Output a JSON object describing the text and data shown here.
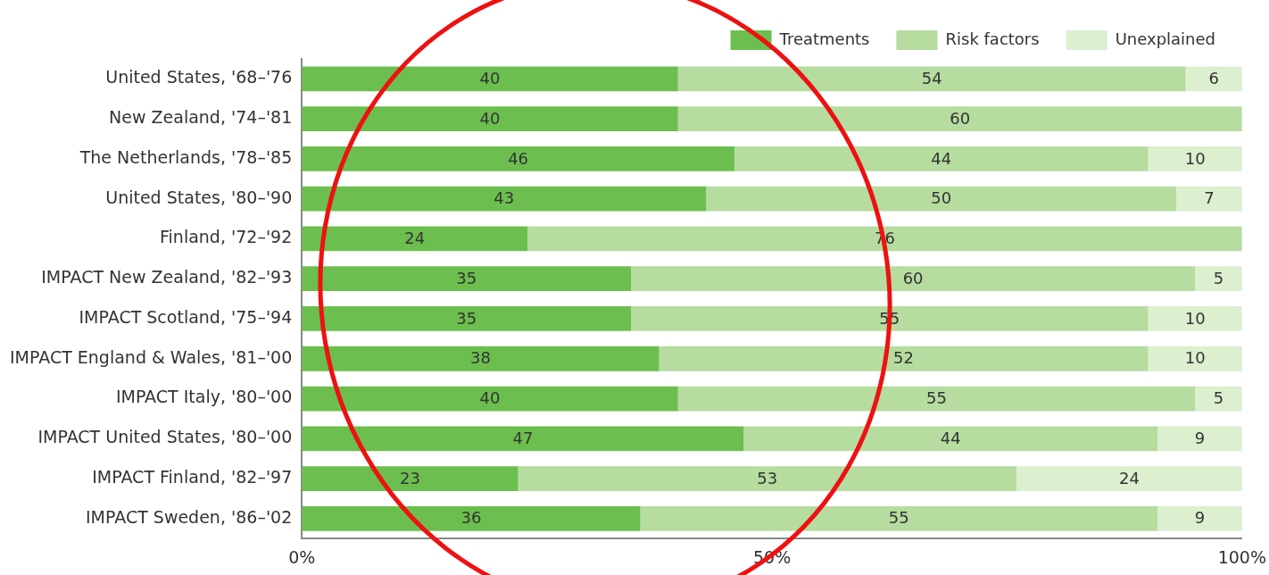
{
  "chart_data": {
    "type": "bar",
    "orientation": "horizontal",
    "stacked": true,
    "categories": [
      "United States, '68–'76",
      "New Zealand, '74–'81",
      "The Netherlands, '78–'85",
      "United States, '80–'90",
      "Finland, '72–'92",
      "IMPACT New Zealand, '82–'93",
      "IMPACT Scotland, '75–'94",
      "IMPACT England & Wales, '81–'00",
      "IMPACT Italy, '80–'00",
      "IMPACT United States, '80–'00",
      "IMPACT Finland, '82–'97",
      "IMPACT Sweden, '86–'02"
    ],
    "series": [
      {
        "name": "Treatments",
        "color": "#6cbf4e",
        "values": [
          40,
          40,
          46,
          43,
          24,
          35,
          35,
          38,
          40,
          47,
          23,
          36
        ]
      },
      {
        "name": "Risk factors",
        "color": "#b6dca0",
        "values": [
          54,
          60,
          44,
          50,
          76,
          60,
          55,
          52,
          55,
          44,
          53,
          55
        ]
      },
      {
        "name": "Unexplained",
        "color": "#dcefcf",
        "values": [
          6,
          null,
          10,
          7,
          null,
          5,
          10,
          10,
          5,
          9,
          24,
          9
        ]
      }
    ],
    "xlim": [
      0,
      100
    ],
    "xticks": [
      {
        "value": 0,
        "label": "0%"
      },
      {
        "value": 50,
        "label": "50%"
      },
      {
        "value": 100,
        "label": "100%"
      }
    ],
    "data_labels": true,
    "grid": false,
    "legend": "top right"
  }
}
